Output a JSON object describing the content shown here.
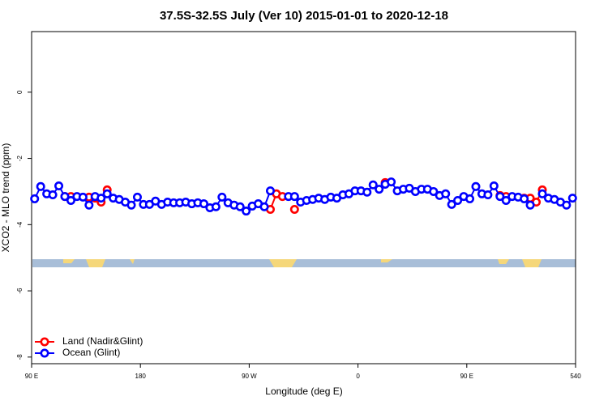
{
  "chart_data": {
    "type": "line",
    "title": "37.5S-32.5S July (Ver 10)   2015-01-01 to 2020-12-18",
    "x_label": "Longitude (deg E)",
    "y_label": "XCO2 - MLO trend (ppm)",
    "xlim": [
      90,
      540
    ],
    "ylim": [
      -8.2,
      1.83
    ],
    "xticks": [
      {
        "value": 90,
        "label": "90 E"
      },
      180,
      {
        "value": 270,
        "label": "90 W"
      },
      {
        "value": 360,
        "label": "0"
      },
      {
        "value": 450,
        "label": "90 E"
      },
      540
    ],
    "yticks": [
      0,
      -2,
      -4,
      -6,
      -8
    ],
    "legend": "bottom-left",
    "x": [
      92.5,
      97.5,
      102.5,
      107.5,
      112.5,
      117.5,
      122.5,
      127.5,
      132.5,
      137.5,
      142.5,
      147.5,
      152.5,
      157.5,
      162.5,
      167.5,
      172.5,
      177.5,
      182.5,
      187.5,
      192.5,
      197.5,
      202.5,
      207.5,
      212.5,
      217.5,
      222.5,
      227.5,
      232.5,
      237.5,
      242.5,
      247.5,
      252.5,
      257.5,
      262.5,
      267.5,
      272.5,
      277.5,
      282.5,
      287.5,
      292.5,
      297.5,
      302.5,
      307.5,
      312.5,
      317.5,
      322.5,
      327.5,
      332.5,
      337.5,
      342.5,
      347.5,
      352.5,
      357.5,
      362.5,
      367.5,
      372.5,
      377.5,
      382.5,
      387.5,
      392.5,
      397.5,
      402.5,
      407.5,
      412.5,
      417.5,
      422.5,
      427.5,
      432.5,
      437.5,
      442.5,
      447.5,
      452.5,
      457.5,
      462.5,
      467.5,
      472.5,
      477.5,
      482.5,
      487.5,
      492.5,
      497.5,
      502.5,
      507.5,
      512.5,
      517.5,
      522.5,
      527.5,
      532.5,
      537.5
    ],
    "series": [
      {
        "name": "Land (Nadir&Glint)",
        "color": "#ff0000",
        "values": [
          null,
          null,
          null,
          null,
          null,
          -3.15,
          -3.15,
          null,
          null,
          -3.17,
          -3.2,
          -3.32,
          -2.95,
          null,
          null,
          null,
          null,
          null,
          null,
          null,
          null,
          null,
          null,
          null,
          null,
          null,
          null,
          null,
          null,
          null,
          null,
          null,
          null,
          null,
          null,
          null,
          null,
          null,
          null,
          -3.54,
          -3.07,
          -3.15,
          null,
          -3.54,
          null,
          null,
          null,
          null,
          null,
          null,
          null,
          null,
          null,
          null,
          null,
          null,
          null,
          null,
          -2.73,
          null,
          null,
          null,
          null,
          null,
          null,
          null,
          null,
          null,
          null,
          null,
          null,
          null,
          null,
          null,
          null,
          null,
          null,
          -3.12,
          -3.15,
          null,
          null,
          -3.2,
          -3.2,
          -3.32,
          -2.95,
          null,
          null,
          null,
          null,
          null
        ]
      },
      {
        "name": "Ocean (Glint)",
        "color": "#0000ff",
        "values": [
          -3.22,
          -2.85,
          -3.07,
          -3.1,
          -2.83,
          -3.15,
          -3.27,
          -3.15,
          -3.17,
          -3.41,
          -3.15,
          -3.2,
          -3.07,
          -3.2,
          -3.24,
          -3.32,
          -3.41,
          -3.17,
          -3.39,
          -3.39,
          -3.29,
          -3.39,
          -3.32,
          -3.34,
          -3.34,
          -3.32,
          -3.37,
          -3.34,
          -3.37,
          -3.49,
          -3.46,
          -3.17,
          -3.34,
          -3.41,
          -3.46,
          -3.59,
          -3.44,
          -3.37,
          -3.46,
          -2.98,
          null,
          null,
          -3.15,
          -3.15,
          -3.32,
          -3.27,
          -3.24,
          -3.2,
          -3.24,
          -3.17,
          -3.2,
          -3.1,
          -3.07,
          -2.98,
          -2.98,
          -3.02,
          -2.8,
          -2.93,
          -2.78,
          -2.71,
          -2.98,
          -2.93,
          -2.9,
          -3.0,
          -2.93,
          -2.93,
          -3.0,
          -3.12,
          -3.07,
          -3.39,
          -3.27,
          -3.15,
          -3.22,
          -2.85,
          -3.07,
          -3.1,
          -2.83,
          -3.15,
          -3.27,
          -3.15,
          -3.17,
          -3.22,
          -3.41,
          null,
          -3.07,
          -3.2,
          -3.24,
          -3.32,
          -3.41,
          -3.2
        ]
      }
    ]
  }
}
